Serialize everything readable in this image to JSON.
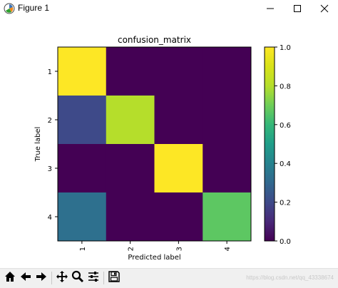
{
  "window": {
    "title": "Figure 1"
  },
  "toolbar": {
    "watermark": "https://blog.csdn.net/qq_43338674"
  },
  "chart_data": {
    "type": "heatmap",
    "title": "confusion_matrix",
    "xlabel": "Predicted label",
    "ylabel": "True label",
    "x_ticks": [
      "1",
      "2",
      "3",
      "4"
    ],
    "y_ticks": [
      "1",
      "2",
      "3",
      "4"
    ],
    "matrix": [
      [
        1.0,
        0.0,
        0.0,
        0.0
      ],
      [
        0.2,
        0.8,
        0.0,
        0.0
      ],
      [
        0.0,
        0.0,
        1.0,
        0.0
      ],
      [
        0.33,
        0.0,
        0.0,
        0.67
      ]
    ],
    "colormap": "viridis",
    "colorbar": {
      "range": [
        0.0,
        1.0
      ],
      "ticks": [
        "0.0",
        "0.2",
        "0.4",
        "0.6",
        "0.8",
        "1.0"
      ]
    }
  }
}
